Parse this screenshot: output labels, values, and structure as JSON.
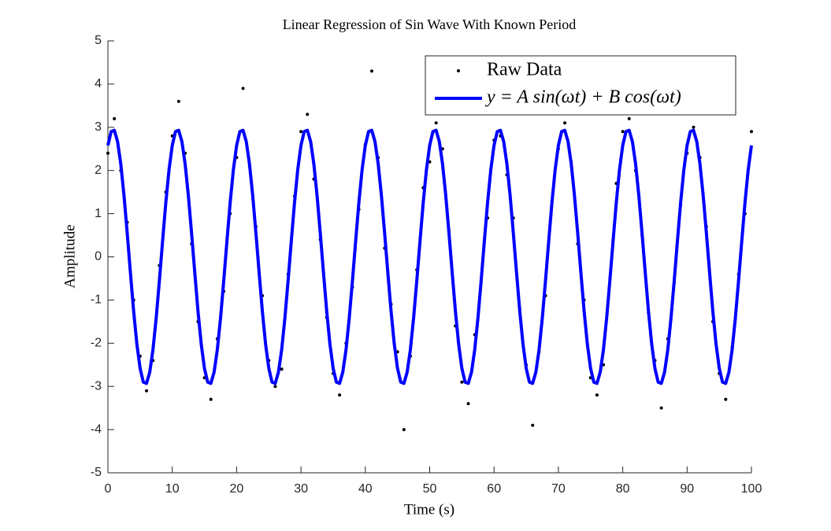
{
  "chart_data": {
    "type": "scatter",
    "title": "Linear Regression of Sin Wave With Known Period",
    "xlabel": "Time (s)",
    "ylabel": "Amplitude",
    "xlim": [
      0,
      100
    ],
    "ylim": [
      -5,
      5
    ],
    "xticks": [
      0,
      10,
      20,
      30,
      40,
      50,
      60,
      70,
      80,
      90,
      100
    ],
    "yticks": [
      -5,
      -4,
      -3,
      -2,
      -1,
      0,
      1,
      2,
      3,
      4,
      5
    ],
    "legend": "upper right",
    "series": [
      {
        "name": "Raw Data",
        "type": "scatter",
        "color": "#000000",
        "x": [
          0,
          1,
          2,
          3,
          4,
          5,
          6,
          7,
          8,
          9,
          10,
          11,
          12,
          13,
          14,
          15,
          16,
          17,
          18,
          19,
          20,
          21,
          22,
          23,
          24,
          25,
          26,
          27,
          28,
          29,
          30,
          31,
          32,
          33,
          34,
          35,
          36,
          37,
          38,
          39,
          40,
          41,
          42,
          43,
          44,
          45,
          46,
          47,
          48,
          49,
          50,
          51,
          52,
          53,
          54,
          55,
          56,
          57,
          58,
          59,
          60,
          61,
          62,
          63,
          64,
          65,
          66,
          67,
          68,
          69,
          70,
          71,
          72,
          73,
          74,
          75,
          76,
          77,
          78,
          79,
          80,
          81,
          82,
          83,
          84,
          85,
          86,
          87,
          88,
          89,
          90,
          91,
          92,
          93,
          94,
          95,
          96,
          97,
          98,
          99,
          100
        ],
        "values": [
          2.4,
          3.2,
          2.0,
          0.8,
          -1.0,
          -2.3,
          -3.1,
          -2.4,
          -0.2,
          1.5,
          2.8,
          3.6,
          2.4,
          0.3,
          -1.5,
          -2.8,
          -3.3,
          -1.9,
          -0.8,
          1.0,
          2.3,
          3.9,
          2.1,
          0.7,
          -0.9,
          -2.4,
          -3.0,
          -2.6,
          -0.4,
          1.4,
          2.9,
          3.3,
          1.8,
          0.4,
          -1.4,
          -2.7,
          -3.2,
          -2.0,
          -0.7,
          1.1,
          2.6,
          4.3,
          2.3,
          0.2,
          -1.1,
          -2.2,
          -4.0,
          -2.3,
          -0.3,
          1.6,
          2.2,
          3.1,
          2.5,
          0.6,
          -1.6,
          -2.9,
          -3.4,
          -1.8,
          -0.6,
          0.9,
          2.7,
          2.8,
          1.9,
          0.9,
          -1.2,
          -2.5,
          -3.9,
          -2.2,
          -0.9,
          1.3,
          2.5,
          3.1,
          2.2,
          0.3,
          -1.0,
          -2.8,
          -3.2,
          -2.5,
          -0.5,
          1.7,
          2.9,
          3.2,
          2.0,
          0.5,
          -1.3,
          -2.4,
          -3.5,
          -1.9,
          -0.6,
          1.2,
          2.4,
          3.0,
          2.3,
          0.7,
          -1.5,
          -2.7,
          -3.3,
          -2.1,
          -0.4,
          1.0,
          2.9
        ]
      },
      {
        "name": "y = A sin(ωt) + B cos(ωt)",
        "type": "line",
        "color": "#0000ff",
        "x": [
          0,
          0.5,
          1,
          1.5,
          2,
          2.5,
          3,
          3.5,
          4,
          4.5,
          5,
          5.5,
          6,
          6.5,
          7,
          7.5,
          8,
          8.5,
          9,
          9.5,
          10,
          10.5,
          11,
          11.5,
          12,
          12.5,
          13,
          13.5,
          14,
          14.5,
          15,
          15.5,
          16,
          16.5,
          17,
          17.5,
          18,
          18.5,
          19,
          19.5,
          20,
          20.5,
          21,
          21.5,
          22,
          22.5,
          23,
          23.5,
          24,
          24.5,
          25,
          25.5,
          26,
          26.5,
          27,
          27.5,
          28,
          28.5,
          29,
          29.5,
          30,
          30.5,
          31,
          31.5,
          32,
          32.5,
          33,
          33.5,
          34,
          34.5,
          35,
          35.5,
          36,
          36.5,
          37,
          37.5,
          38,
          38.5,
          39,
          39.5,
          40,
          40.5,
          41,
          41.5,
          42,
          42.5,
          43,
          43.5,
          44,
          44.5,
          45,
          45.5,
          46,
          46.5,
          47,
          47.5,
          48,
          48.5,
          49,
          49.5,
          50,
          50.5,
          51,
          51.5,
          52,
          52.5,
          53,
          53.5,
          54,
          54.5,
          55,
          55.5,
          56,
          56.5,
          57,
          57.5,
          58,
          58.5,
          59,
          59.5,
          60,
          60.5,
          61,
          61.5,
          62,
          62.5,
          63,
          63.5,
          64,
          64.5,
          65,
          65.5,
          66,
          66.5,
          67,
          67.5,
          68,
          68.5,
          69,
          69.5,
          70,
          70.5,
          71,
          71.5,
          72,
          72.5,
          73,
          73.5,
          74,
          74.5,
          75,
          75.5,
          76,
          76.5,
          77,
          77.5,
          78,
          78.5,
          79,
          79.5,
          80,
          80.5,
          81,
          81.5,
          82,
          82.5,
          83,
          83.5,
          84,
          84.5,
          85,
          85.5,
          86,
          86.5,
          87,
          87.5,
          88,
          88.5,
          89,
          89.5,
          90,
          90.5,
          91,
          91.5,
          92,
          92.5,
          93,
          93.5,
          94,
          94.5,
          95,
          95.5,
          96,
          96.5,
          97,
          97.5,
          98,
          98.5,
          99,
          99.5,
          100
        ],
        "values": [
          2.58,
          2.9,
          2.93,
          2.67,
          2.15,
          1.42,
          0.55,
          -0.37,
          -1.26,
          -2.02,
          -2.58,
          -2.9,
          -2.93,
          -2.67,
          -2.15,
          -1.42,
          -0.55,
          0.37,
          1.26,
          2.02,
          2.58,
          2.9,
          2.93,
          2.67,
          2.15,
          1.42,
          0.55,
          -0.37,
          -1.26,
          -2.02,
          -2.58,
          -2.9,
          -2.93,
          -2.67,
          -2.15,
          -1.42,
          -0.55,
          0.37,
          1.26,
          2.02,
          2.58,
          2.9,
          2.93,
          2.67,
          2.15,
          1.42,
          0.55,
          -0.37,
          -1.26,
          -2.02,
          -2.58,
          -2.9,
          -2.93,
          -2.67,
          -2.15,
          -1.42,
          -0.55,
          0.37,
          1.26,
          2.02,
          2.58,
          2.9,
          2.93,
          2.67,
          2.15,
          1.42,
          0.55,
          -0.37,
          -1.26,
          -2.02,
          -2.58,
          -2.9,
          -2.93,
          -2.67,
          -2.15,
          -1.42,
          -0.55,
          0.37,
          1.26,
          2.02,
          2.58,
          2.9,
          2.93,
          2.67,
          2.15,
          1.42,
          0.55,
          -0.37,
          -1.26,
          -2.02,
          -2.58,
          -2.9,
          -2.93,
          -2.67,
          -2.15,
          -1.42,
          -0.55,
          0.37,
          1.26,
          2.02,
          2.58,
          2.9,
          2.93,
          2.67,
          2.15,
          1.42,
          0.55,
          -0.37,
          -1.26,
          -2.02,
          -2.58,
          -2.9,
          -2.93,
          -2.67,
          -2.15,
          -1.42,
          -0.55,
          0.37,
          1.26,
          2.02,
          2.58,
          2.9,
          2.93,
          2.67,
          2.15,
          1.42,
          0.55,
          -0.37,
          -1.26,
          -2.02,
          -2.58,
          -2.9,
          -2.93,
          -2.67,
          -2.15,
          -1.42,
          -0.55,
          0.37,
          1.26,
          2.02,
          2.58,
          2.9,
          2.93,
          2.67,
          2.15,
          1.42,
          0.55,
          -0.37,
          -1.26,
          -2.02,
          -2.58,
          -2.9,
          -2.93,
          -2.67,
          -2.15,
          -1.42,
          -0.55,
          0.37,
          1.26,
          2.02,
          2.58,
          2.9,
          2.93,
          2.67,
          2.15,
          1.42,
          0.55,
          -0.37,
          -1.26,
          -2.02,
          -2.58,
          -2.9,
          -2.93,
          -2.67,
          -2.15,
          -1.42,
          -0.55,
          0.37,
          1.26,
          2.02,
          2.58,
          2.9,
          2.93,
          2.67,
          2.15,
          1.42,
          0.55,
          -0.37,
          -1.26,
          -2.02,
          -2.58,
          -2.9,
          -2.93,
          -2.67,
          -2.15,
          -1.42,
          -0.55,
          0.37,
          1.26,
          2.02,
          2.58
        ]
      }
    ]
  }
}
